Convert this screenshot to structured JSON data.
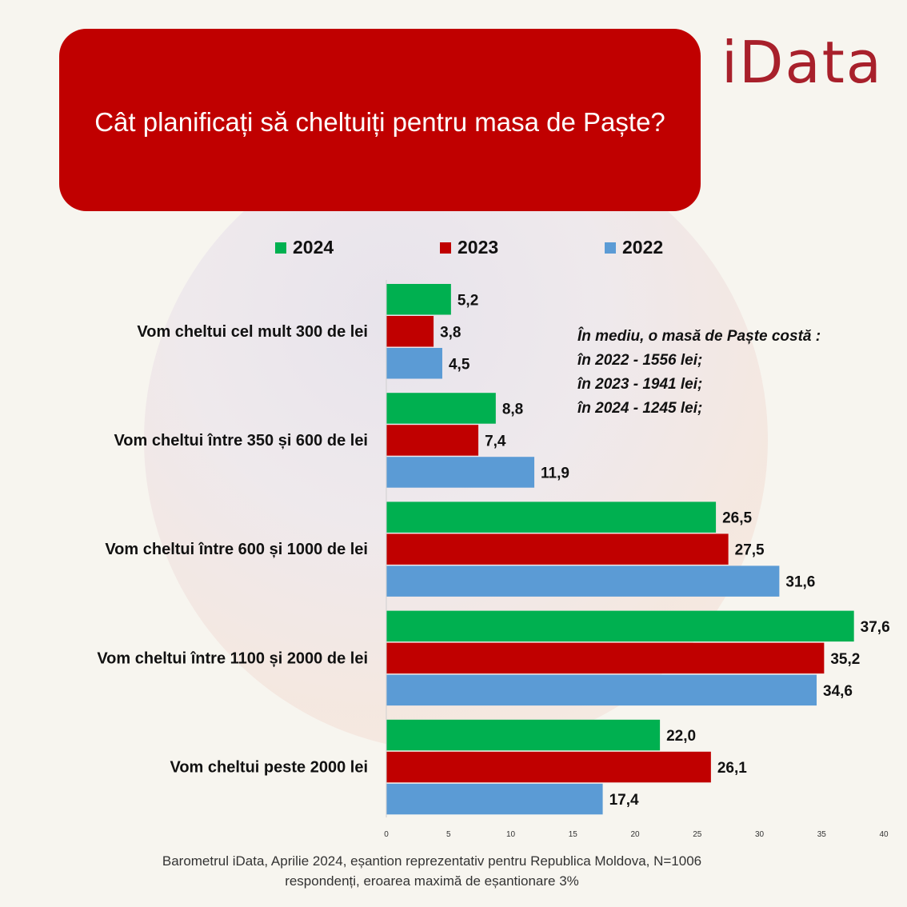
{
  "title": "Cât planificați să cheltuiți pentru masa de Paște?",
  "logo": "iData",
  "note_lines": [
    "În mediu, o masă de Paște costă :",
    "în 2022  - 1556 lei;",
    "în 2023 - 1941 lei;",
    "în 2024 - 1245 lei;"
  ],
  "footer_lines": [
    "Barometrul iData, Aprilie 2024, eșantion reprezentativ pentru Republica Moldova, N=1006",
    "respondenți, eroarea maximă de eșantionare 3%"
  ],
  "chart_data": {
    "type": "bar",
    "orientation": "horizontal",
    "categories": [
      "Vom cheltui cel mult 300 de lei",
      "Vom cheltui între 350 și 600 de lei",
      "Vom cheltui între 600 și 1000 de lei",
      "Vom cheltui între 1100 și 2000 de lei",
      "Vom cheltui peste 2000 lei"
    ],
    "series": [
      {
        "name": "2024",
        "color": "#00b050",
        "values": [
          5.2,
          8.8,
          26.5,
          37.6,
          22.0
        ],
        "labels": [
          "5,2",
          "8,8",
          "26,5",
          "37,6",
          "22,0"
        ]
      },
      {
        "name": "2023",
        "color": "#c00000",
        "values": [
          3.8,
          7.4,
          27.5,
          35.2,
          26.1
        ],
        "labels": [
          "3,8",
          "7,4",
          "27,5",
          "35,2",
          "26,1"
        ]
      },
      {
        "name": "2022",
        "color": "#5b9bd5",
        "values": [
          4.5,
          11.9,
          31.6,
          34.6,
          17.4
        ],
        "labels": [
          "4,5",
          "11,9",
          "31,6",
          "34,6",
          "17,4"
        ]
      }
    ],
    "xlim": [
      0,
      40
    ],
    "xticks": [
      0,
      5,
      10,
      15,
      20,
      25,
      30,
      35,
      40
    ],
    "legend_position": "top",
    "grid": false
  }
}
